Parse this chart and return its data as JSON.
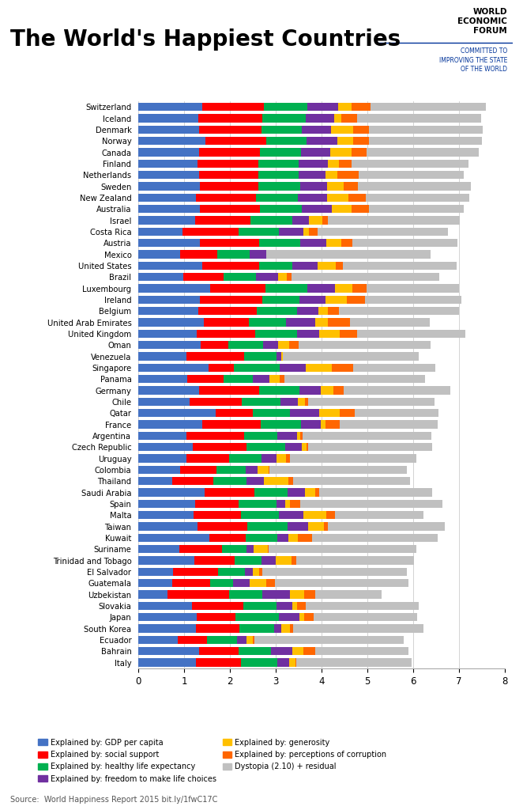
{
  "title": "The World's Happiest Countries",
  "source": "Source:  World Happiness Report 2015 bit.ly/1fwC17C",
  "countries": [
    "Switzerland",
    "Iceland",
    "Denmark",
    "Norway",
    "Canada",
    "Finland",
    "Netherlands",
    "Sweden",
    "New Zealand",
    "Australia",
    "Israel",
    "Costa Rica",
    "Austria",
    "Mexico",
    "United States",
    "Brazil",
    "Luxembourg",
    "Ireland",
    "Belgium",
    "United Arab Emirates",
    "United Kingdom",
    "Oman",
    "Venezuela",
    "Singapore",
    "Panama",
    "Germany",
    "Chile",
    "Qatar",
    "France",
    "Argentina",
    "Czech Republic",
    "Uruguay",
    "Colombia",
    "Thailand",
    "Saudi Arabia",
    "Spain",
    "Malta",
    "Taiwan",
    "Kuwait",
    "Suriname",
    "Trinidad and Tobago",
    "El Salvador",
    "Guatemala",
    "Uzbekistan",
    "Slovakia",
    "Japan",
    "South Korea",
    "Ecuador",
    "Bahrain",
    "Italy"
  ],
  "gdp": [
    1.39651,
    1.30232,
    1.32548,
    1.459,
    1.32629,
    1.29025,
    1.32944,
    1.33096,
    1.25018,
    1.33358,
    1.22857,
    0.95578,
    1.33723,
    0.91093,
    1.39451,
    0.98124,
    1.56499,
    1.33596,
    1.30782,
    1.42727,
    1.26637,
    1.36011,
    1.04424,
    1.52186,
    1.06426,
    1.32792,
    1.10715,
    1.69042,
    1.39488,
    1.05351,
    1.17898,
    1.04424,
    0.91093,
    0.73021,
    1.44443,
    1.23011,
    1.20813,
    1.29098,
    1.55422,
    0.88714,
    1.21163,
    0.75862,
    0.74302,
    0.63216,
    1.16491,
    1.27074,
    1.24461,
    0.86402,
    1.32376,
    1.25114
  ],
  "social": [
    1.34951,
    1.40223,
    1.36058,
    1.33095,
    1.32261,
    1.31826,
    1.28017,
    1.28548,
    1.31967,
    1.30923,
    1.22393,
    1.23788,
    1.29042,
    0.81139,
    1.24711,
    0.88144,
    1.21051,
    1.36948,
    1.26662,
    0.98779,
    1.28548,
    0.6004,
    1.2532,
    0.56616,
    0.78791,
    1.29937,
    1.1386,
    0.8118,
    1.27353,
    1.24823,
    1.178,
    0.93156,
    0.79562,
    0.90943,
    1.08383,
    0.95578,
    1.025,
    1.07543,
    0.77782,
    0.93436,
    0.8943,
    0.97381,
    0.8164,
    1.34826,
    1.11807,
    0.85151,
    0.95398,
    0.63544,
    0.8576,
    0.988
  ],
  "health": [
    0.94143,
    0.94784,
    0.87464,
    0.88521,
    0.90563,
    0.88911,
    0.89533,
    0.91087,
    0.90837,
    0.93156,
    0.91387,
    0.87562,
    0.89584,
    0.7003,
    0.72402,
    0.69702,
    0.91894,
    0.81658,
    0.89431,
    0.80925,
    0.90943,
    0.76276,
    0.72372,
    0.9951,
    0.64595,
    0.89547,
    0.85857,
    0.79733,
    0.88024,
    0.72754,
    0.84483,
    0.71206,
    0.63216,
    0.72182,
    0.72408,
    0.81927,
    0.83854,
    0.88754,
    0.69264,
    0.531,
    0.57562,
    0.5921,
    0.50763,
    0.73021,
    0.72597,
    0.94764,
    0.768,
    0.64571,
    0.70485,
    0.7984
  ],
  "freedom": [
    0.66557,
    0.62877,
    0.64938,
    0.66973,
    0.63297,
    0.64169,
    0.58444,
    0.59455,
    0.63938,
    0.65124,
    0.35769,
    0.5382,
    0.57562,
    0.35877,
    0.54531,
    0.4951,
    0.59594,
    0.56387,
    0.45302,
    0.64157,
    0.4907,
    0.33172,
    0.10067,
    0.57693,
    0.35583,
    0.46074,
    0.37789,
    0.647,
    0.43877,
    0.42655,
    0.36138,
    0.32538,
    0.2643,
    0.38433,
    0.37469,
    0.19387,
    0.531,
    0.44764,
    0.24684,
    0.15573,
    0.307,
    0.1798,
    0.3624,
    0.60148,
    0.345,
    0.44764,
    0.1519,
    0.20905,
    0.47489,
    0.26
  ],
  "generosity": [
    0.29678,
    0.14145,
    0.48357,
    0.34699,
    0.45811,
    0.23351,
    0.26036,
    0.36124,
    0.47501,
    0.43562,
    0.28435,
    0.10547,
    0.33088,
    0.0,
    0.39499,
    0.17521,
    0.37578,
    0.45897,
    0.22228,
    0.26428,
    0.44376,
    0.2371,
    0.0249,
    0.56538,
    0.22693,
    0.27489,
    0.15856,
    0.44291,
    0.10166,
    0.07791,
    0.10339,
    0.20676,
    0.2335,
    0.5349,
    0.2371,
    0.1,
    0.49835,
    0.3502,
    0.20965,
    0.3073,
    0.3524,
    0.1212,
    0.368,
    0.30048,
    0.10339,
    0.1,
    0.1886,
    0.15,
    0.2411,
    0.12985
  ],
  "corruption": [
    0.41978,
    0.35521,
    0.34139,
    0.34699,
    0.32957,
    0.28477,
    0.46417,
    0.30558,
    0.36521,
    0.36485,
    0.12575,
    0.19084,
    0.23507,
    0.0,
    0.15145,
    0.11502,
    0.3118,
    0.39547,
    0.23428,
    0.49049,
    0.37793,
    0.2068,
    0.0,
    0.46468,
    0.1074,
    0.22073,
    0.05607,
    0.32573,
    0.30682,
    0.05765,
    0.04587,
    0.08873,
    0.0195,
    0.09498,
    0.09008,
    0.23478,
    0.19834,
    0.0868,
    0.30424,
    0.02395,
    0.1118,
    0.07605,
    0.1733,
    0.24048,
    0.19834,
    0.2059,
    0.0776,
    0.0202,
    0.26428,
    0.025
  ],
  "dystopia": [
    2.51738,
    2.70201,
    2.49204,
    2.46531,
    2.45176,
    2.54938,
    2.28998,
    2.47553,
    2.26425,
    2.07988,
    2.89131,
    2.85598,
    2.30704,
    3.60214,
    2.4934,
    3.2206,
    2.01648,
    2.11482,
    2.62645,
    1.73832,
    2.37119,
    2.88124,
    2.97445,
    1.79622,
    3.07044,
    2.33208,
    2.7766,
    1.84302,
    2.14803,
    2.80498,
    2.70425,
    2.76563,
    3.00297,
    2.56237,
    2.4556,
    3.10825,
    1.93154,
    2.5524,
    2.75466,
    3.22543,
    2.57344,
    3.16413,
    2.92834,
    1.4599,
    2.4569,
    2.26827,
    2.8327,
    3.2763,
    2.0339,
    2.517
  ],
  "colors": {
    "gdp": "#4472C4",
    "social": "#FF0000",
    "health": "#00B050",
    "freedom": "#7030A0",
    "generosity": "#FFC000",
    "corruption": "#FF6600",
    "dystopia": "#C0C0C0"
  },
  "legend_labels": [
    "Explained by: GDP per capita",
    "Explained by: social support",
    "Explained by: healthy life expectancy",
    "Explained by: freedom to make life choices",
    "Explained by: generosity",
    "Explained by: perceptions of corruption",
    "Dystopia (2.10) + residual"
  ],
  "wef_line1": "WORLD",
  "wef_line2": "ECONOMIC",
  "wef_line3": "FORUM",
  "wef_sub": "COMMITTED TO\nIMPROVING THE STATE\nOF THE WORLD"
}
